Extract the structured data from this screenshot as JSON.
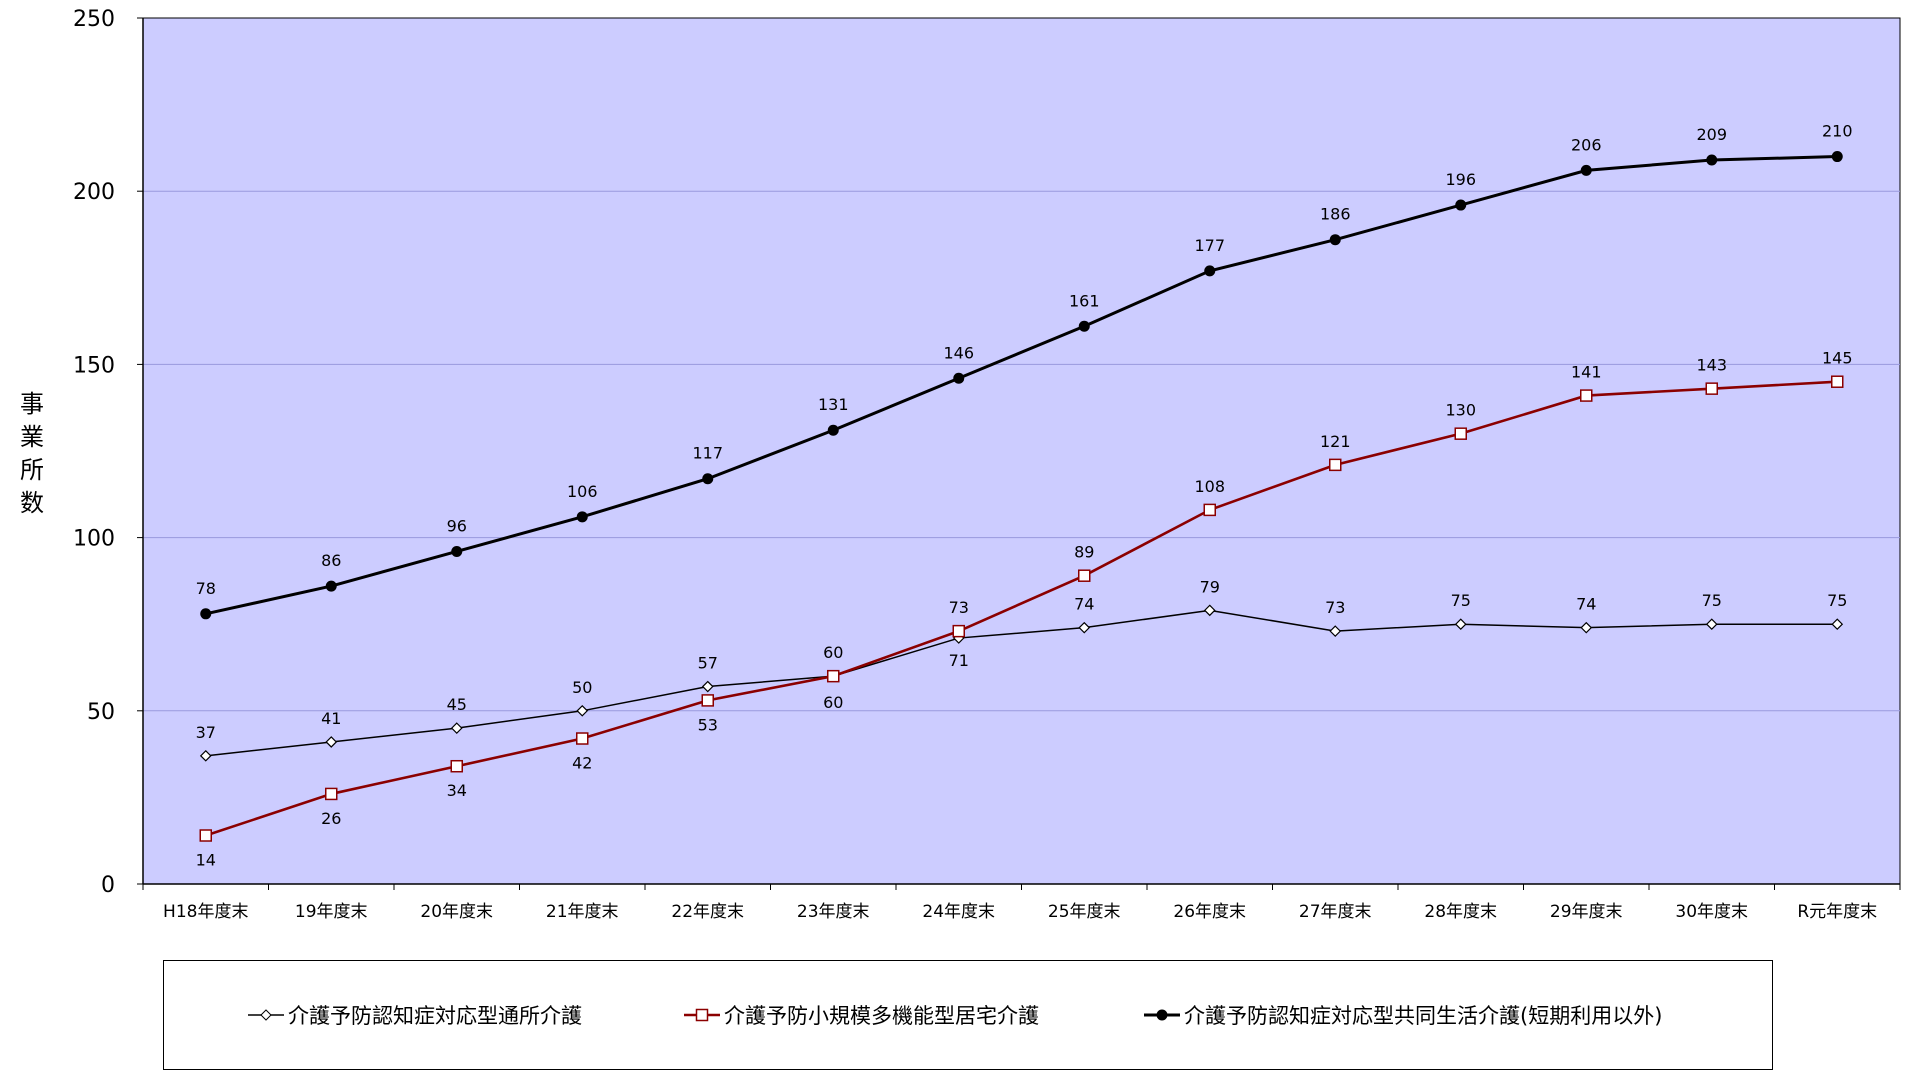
{
  "chart_data": {
    "type": "line",
    "categories": [
      "H18年度末",
      "19年度末",
      "20年度末",
      "21年度末",
      "22年度末",
      "23年度末",
      "24年度末",
      "25年度末",
      "26年度末",
      "27年度末",
      "28年度末",
      "29年度末",
      "30年度末",
      "R元年度末"
    ],
    "ylabel": "事業所数",
    "ylim": [
      0,
      250
    ],
    "yticks": [
      0,
      50,
      100,
      150,
      200,
      250
    ],
    "grid": true,
    "legend_position": "bottom",
    "series": [
      {
        "name": "介護予防認知症対応型通所介護",
        "color": "#000000",
        "marker": "diamond-open",
        "values": [
          37,
          41,
          45,
          50,
          57,
          60,
          71,
          74,
          79,
          73,
          75,
          74,
          75,
          75
        ],
        "labels": [
          "37",
          "41",
          "45",
          "50",
          "57",
          "60",
          "71",
          "74",
          "79",
          "73",
          "75",
          "74",
          "75",
          "75"
        ]
      },
      {
        "name": "介護予防小規模多機能型居宅介護",
        "color": "#8b0000",
        "marker": "square-open",
        "values": [
          14,
          26,
          34,
          42,
          53,
          60,
          73,
          89,
          108,
          121,
          130,
          141,
          143,
          145
        ],
        "labels": [
          "14",
          "26",
          "34",
          "42",
          "53",
          "60",
          "73",
          "89",
          "108",
          "121",
          "130",
          "141",
          "143",
          "145"
        ]
      },
      {
        "name": "介護予防認知症対応型共同生活介護(短期利用以外)",
        "color": "#000000",
        "marker": "circle-filled",
        "values": [
          78,
          86,
          96,
          106,
          117,
          131,
          146,
          161,
          177,
          186,
          196,
          206,
          209,
          210
        ],
        "labels": [
          "78",
          "86",
          "96",
          "106",
          "117",
          "131",
          "146",
          "161",
          "177",
          "186",
          "196",
          "206",
          "209",
          "210"
        ]
      }
    ]
  },
  "colors": {
    "plot_background": "#ccccff",
    "gridline": "#9999dd",
    "axis": "#000000"
  }
}
